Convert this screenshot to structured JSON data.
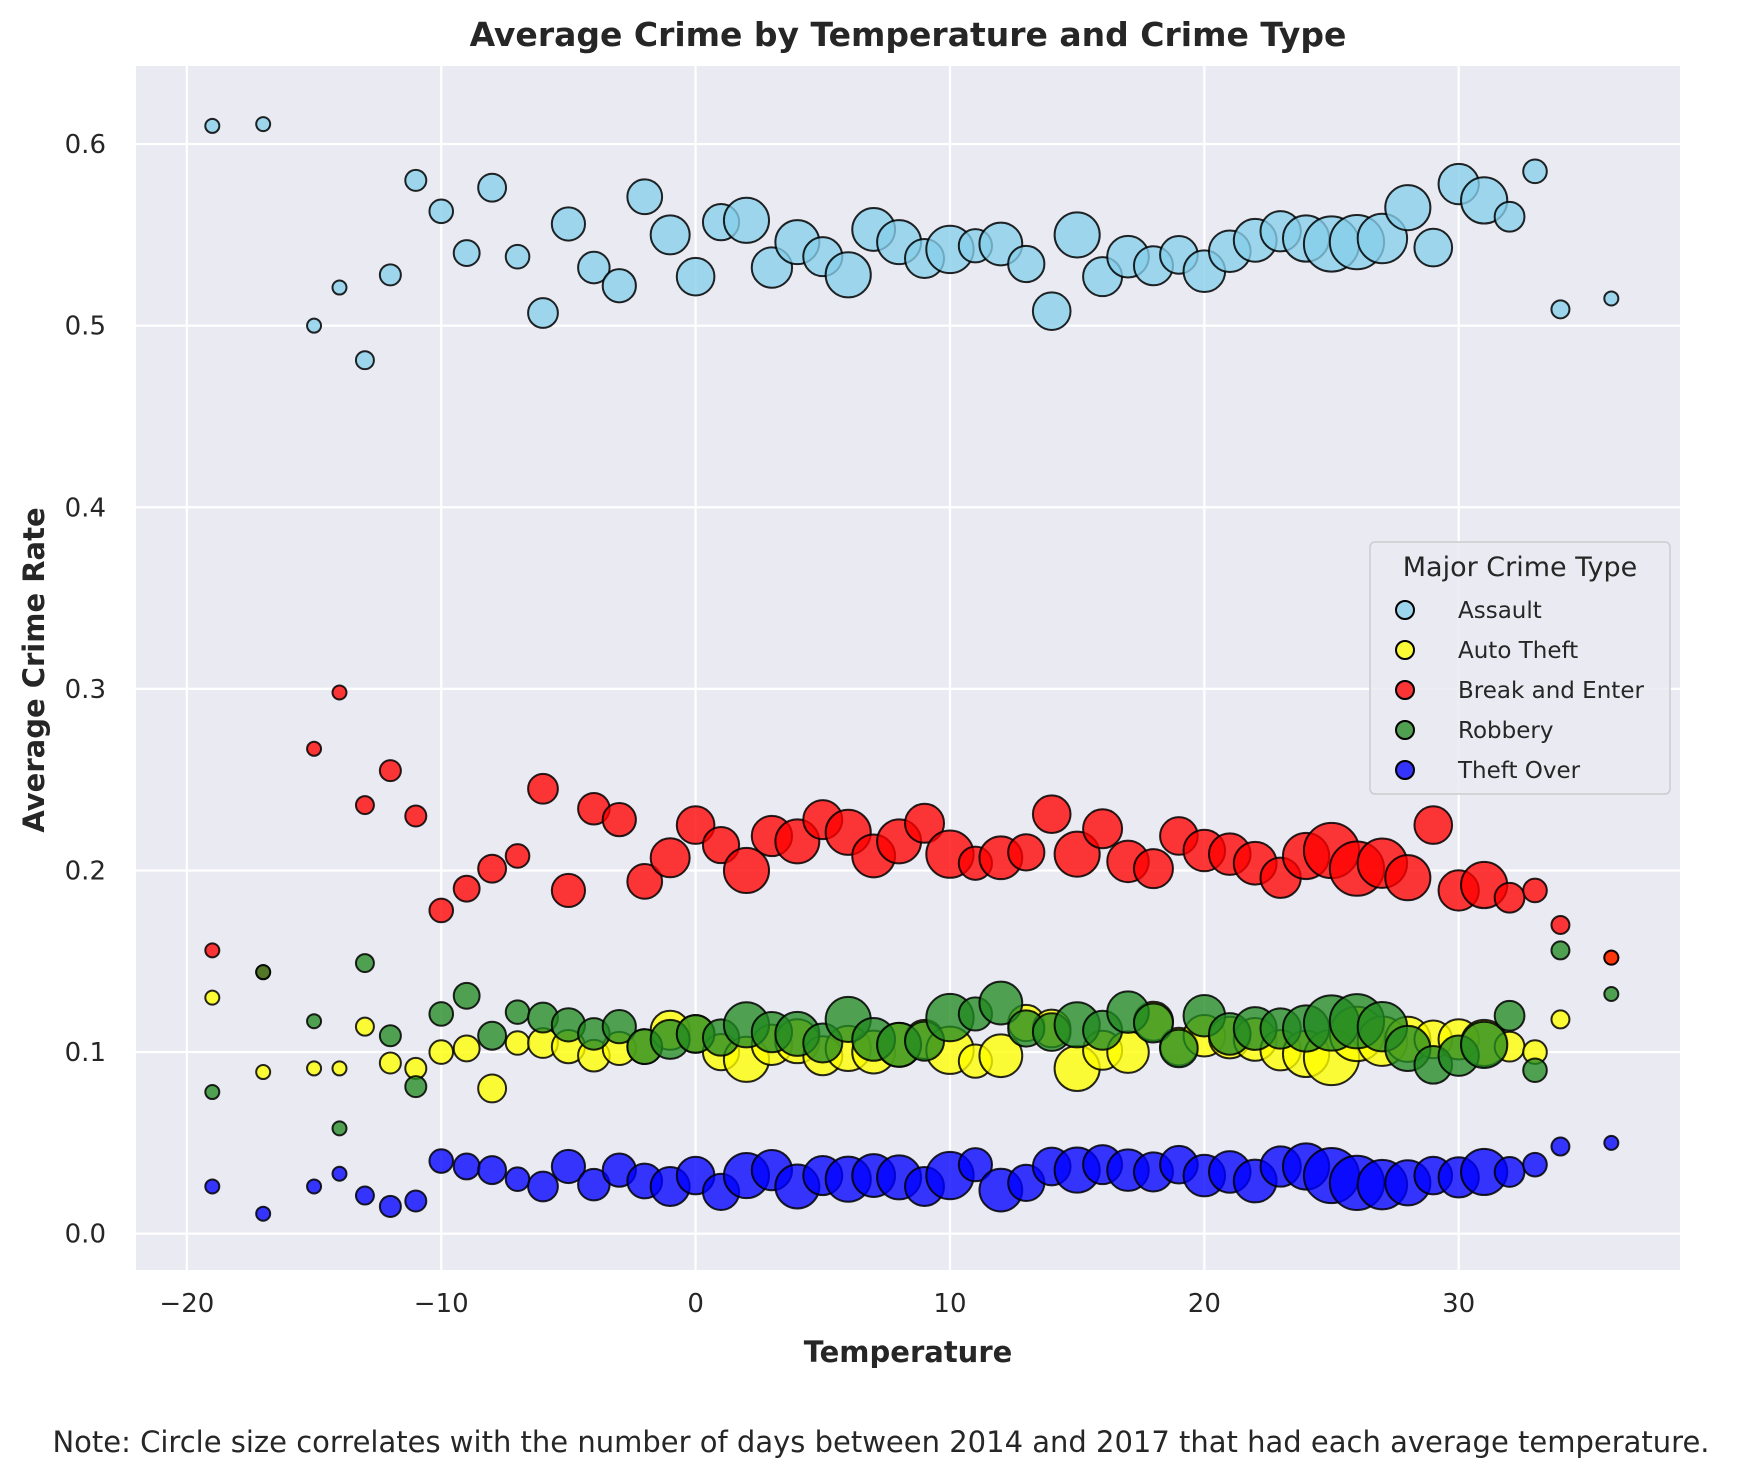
{
  "chart_data": {
    "type": "scatter",
    "title": "Average Crime by Temperature and Crime Type",
    "xlabel": "Temperature",
    "ylabel": "Average Crime Rate",
    "xlim": [
      -22,
      38.7
    ],
    "ylim": [
      -0.02,
      0.643
    ],
    "x_ticks": [
      -20,
      -10,
      0,
      10,
      20,
      30
    ],
    "x_tick_labels": [
      "−20",
      "−10",
      "0",
      "10",
      "20",
      "30"
    ],
    "y_ticks": [
      0.0,
      0.1,
      0.2,
      0.3,
      0.4,
      0.5,
      0.6
    ],
    "y_tick_labels": [
      "0.0",
      "0.1",
      "0.2",
      "0.3",
      "0.4",
      "0.5",
      "0.6"
    ],
    "grid": true,
    "legend": {
      "title": "Major Crime Type",
      "placement": "center-right"
    },
    "size_note": "Note: Circle size correlates with the number of days between 2014 and 2017 that had each average temperature.",
    "temperatures": [
      -19,
      -17,
      -15,
      -14,
      -13,
      -12,
      -11,
      -10,
      -9,
      -8,
      -7,
      -6,
      -5,
      -4,
      -3,
      -2,
      -1,
      0,
      1,
      2,
      3,
      4,
      5,
      6,
      7,
      8,
      9,
      10,
      11,
      12,
      13,
      14,
      15,
      16,
      17,
      18,
      19,
      20,
      21,
      22,
      23,
      24,
      25,
      26,
      27,
      28,
      29,
      30,
      31,
      32,
      33,
      34,
      36
    ],
    "day_counts": [
      1,
      1,
      1,
      1,
      2,
      3,
      3,
      4,
      5,
      6,
      4,
      7,
      9,
      8,
      9,
      10,
      13,
      12,
      11,
      18,
      14,
      17,
      13,
      18,
      16,
      17,
      13,
      20,
      9,
      16,
      11,
      12,
      18,
      13,
      15,
      13,
      12,
      15,
      15,
      16,
      14,
      19,
      28,
      27,
      22,
      18,
      12,
      14,
      19,
      7,
      4,
      2,
      1
    ],
    "series": [
      {
        "name": "Assault",
        "color": "#87ceeb",
        "values": [
          0.61,
          0.611,
          0.5,
          0.521,
          0.481,
          0.528,
          0.58,
          0.563,
          0.54,
          0.576,
          0.538,
          0.507,
          0.556,
          0.532,
          0.522,
          0.571,
          0.55,
          0.527,
          0.557,
          0.558,
          0.532,
          0.546,
          0.538,
          0.528,
          0.553,
          0.546,
          0.537,
          0.542,
          0.544,
          0.545,
          0.534,
          0.508,
          0.55,
          0.527,
          0.538,
          0.533,
          0.539,
          0.53,
          0.541,
          0.547,
          0.552,
          0.548,
          0.545,
          0.546,
          0.548,
          0.565,
          0.543,
          0.578,
          0.569,
          0.56,
          0.585,
          0.509,
          0.515
        ]
      },
      {
        "name": "Auto Theft",
        "color": "#ffff00",
        "values": [
          0.13,
          0.089,
          0.091,
          0.091,
          0.114,
          0.094,
          0.091,
          0.1,
          0.102,
          0.08,
          0.105,
          0.105,
          0.103,
          0.098,
          0.102,
          0.103,
          0.112,
          0.11,
          0.1,
          0.096,
          0.104,
          0.106,
          0.098,
          0.102,
          0.1,
          0.104,
          0.107,
          0.101,
          0.095,
          0.098,
          0.116,
          0.113,
          0.091,
          0.101,
          0.1,
          0.117,
          0.103,
          0.109,
          0.108,
          0.107,
          0.101,
          0.099,
          0.097,
          0.11,
          0.106,
          0.107,
          0.107,
          0.107,
          0.105,
          0.103,
          0.1,
          0.118,
          0.152
        ]
      },
      {
        "name": "Break and Enter",
        "color": "#ff0000",
        "values": [
          0.156,
          0.144,
          0.267,
          0.298,
          0.236,
          0.255,
          0.23,
          0.178,
          0.19,
          0.201,
          0.208,
          0.245,
          0.189,
          0.234,
          0.228,
          0.194,
          0.207,
          0.225,
          0.214,
          0.2,
          0.219,
          0.216,
          0.228,
          0.221,
          0.208,
          0.216,
          0.226,
          0.209,
          0.204,
          0.207,
          0.21,
          0.231,
          0.209,
          0.223,
          0.205,
          0.201,
          0.219,
          0.211,
          0.209,
          0.204,
          0.196,
          0.208,
          0.211,
          0.201,
          0.204,
          0.196,
          0.225,
          0.189,
          0.192,
          0.185,
          0.189,
          0.17,
          0.152
        ]
      },
      {
        "name": "Robbery",
        "color": "#228b22",
        "values": [
          0.078,
          0.144,
          0.117,
          0.058,
          0.149,
          0.109,
          0.081,
          0.121,
          0.131,
          0.109,
          0.122,
          0.119,
          0.115,
          0.11,
          0.114,
          0.103,
          0.107,
          0.11,
          0.108,
          0.115,
          0.111,
          0.11,
          0.105,
          0.118,
          0.107,
          0.104,
          0.106,
          0.119,
          0.121,
          0.127,
          0.113,
          0.111,
          0.115,
          0.112,
          0.122,
          0.116,
          0.102,
          0.12,
          0.11,
          0.113,
          0.113,
          0.113,
          0.116,
          0.117,
          0.114,
          0.102,
          0.093,
          0.098,
          0.104,
          0.12,
          0.09,
          0.156,
          0.132
        ]
      },
      {
        "name": "Theft Over",
        "color": "#0000ff",
        "values": [
          0.026,
          0.011,
          0.026,
          0.033,
          0.021,
          0.015,
          0.018,
          0.04,
          0.037,
          0.035,
          0.03,
          0.026,
          0.037,
          0.027,
          0.035,
          0.029,
          0.026,
          0.032,
          0.023,
          0.032,
          0.035,
          0.026,
          0.032,
          0.03,
          0.032,
          0.031,
          0.026,
          0.032,
          0.038,
          0.024,
          0.028,
          0.037,
          0.035,
          0.038,
          0.035,
          0.034,
          0.038,
          0.032,
          0.034,
          0.029,
          0.037,
          0.037,
          0.032,
          0.028,
          0.027,
          0.028,
          0.032,
          0.031,
          0.034,
          0.034,
          0.038,
          0.048,
          0.05
        ]
      }
    ]
  }
}
